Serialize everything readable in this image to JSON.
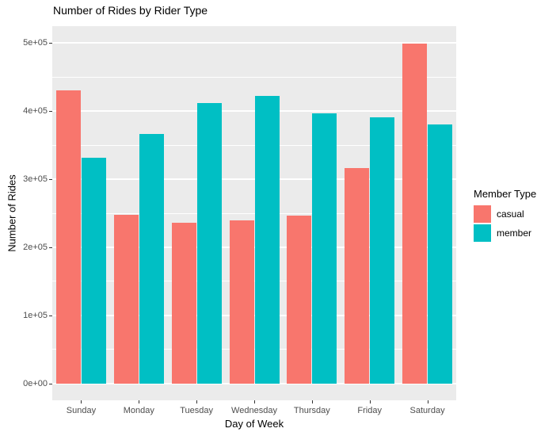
{
  "title": "Number of Rides by Rider Type",
  "chart_data": {
    "type": "bar",
    "title": "Number of Rides by Rider Type",
    "xlabel": "Day of Week",
    "ylabel": "Number of Rides",
    "categories": [
      "Sunday",
      "Monday",
      "Tuesday",
      "Wednesday",
      "Thursday",
      "Friday",
      "Saturday"
    ],
    "series": [
      {
        "name": "casual",
        "color": "#F8766D",
        "values": [
          431000,
          248000,
          236000,
          239000,
          246000,
          316000,
          499000
        ]
      },
      {
        "name": "member",
        "color": "#00BFC4",
        "values": [
          332000,
          367000,
          412000,
          422000,
          397000,
          391000,
          380000
        ]
      }
    ],
    "ylim": [
      0,
      500000
    ],
    "ylim_display": [
      -25000,
      525000
    ],
    "y_ticks": [
      {
        "value": 0,
        "label": "0e+00"
      },
      {
        "value": 100000,
        "label": "1e+05"
      },
      {
        "value": 200000,
        "label": "2e+05"
      },
      {
        "value": 300000,
        "label": "3e+05"
      },
      {
        "value": 400000,
        "label": "4e+05"
      },
      {
        "value": 500000,
        "label": "5e+05"
      }
    ],
    "y_minor_ticks": [
      50000,
      150000,
      250000,
      350000,
      450000
    ],
    "grid": true,
    "legend_position": "right"
  },
  "legend": {
    "title": "Member Type",
    "items": [
      {
        "label": "casual",
        "color": "#F8766D"
      },
      {
        "label": "member",
        "color": "#00BFC4"
      }
    ]
  },
  "colors": {
    "panel_background": "#EBEBEB",
    "gridline": "#FFFFFF",
    "axis_text": "#4D4D4D",
    "title_text": "#000000",
    "casual": "#F8766D",
    "member": "#00BFC4"
  }
}
